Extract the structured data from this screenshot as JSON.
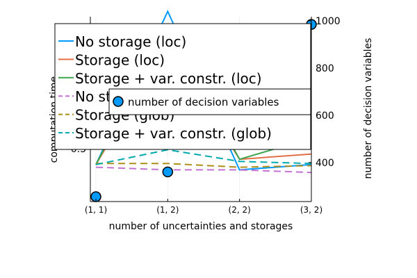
{
  "chart_data": {
    "type": "line",
    "xlabel": "number of uncertainties and storages",
    "ylabel_left": "computation time",
    "ylabel_right": "number of decision variables",
    "categories": [
      "(1, 1)",
      "(1, 2)",
      "(2, 2)",
      "(3, 2)"
    ],
    "y_left_ticks": [
      0.3
    ],
    "y_left_range": [
      0.2,
      0.55
    ],
    "y_right_ticks": [
      400,
      600,
      800,
      1000
    ],
    "y_right_range": [
      255,
      1000
    ],
    "grid": true,
    "series_left": [
      {
        "name": "No storage (loc)",
        "color": "#009AFA",
        "dash": "solid",
        "values": [
          0.27,
          0.56,
          0.26,
          0.27
        ]
      },
      {
        "name": "Storage (loc)",
        "color": "#E36F47",
        "dash": "solid",
        "values": [
          0.27,
          0.5,
          0.28,
          0.29
        ]
      },
      {
        "name": "Storage + var. constr. (loc)",
        "color": "#3EA44E",
        "dash": "solid",
        "values": [
          0.27,
          0.53,
          0.28,
          0.32
        ]
      },
      {
        "name": "No storage (glob)",
        "color": "#C371D2",
        "dash": "dashed",
        "values": [
          0.265,
          0.26,
          0.26,
          0.255
        ]
      },
      {
        "name": "Storage (glob)",
        "color": "#AC8E18",
        "dash": "dashed",
        "values": [
          0.272,
          0.272,
          0.265,
          0.268
        ]
      },
      {
        "name": "Storage + var. constr. (glob)",
        "color": "#00A9AD",
        "dash": "dashed",
        "values": [
          0.27,
          0.298,
          0.276,
          0.272
        ]
      }
    ],
    "series_right": [
      {
        "name": "number of decision variables",
        "color": "#009AFA",
        "type": "scatter",
        "values": [
          255,
          360,
          null,
          985
        ]
      }
    ],
    "legend_main": "top-left",
    "legend_secondary": "center-right"
  }
}
